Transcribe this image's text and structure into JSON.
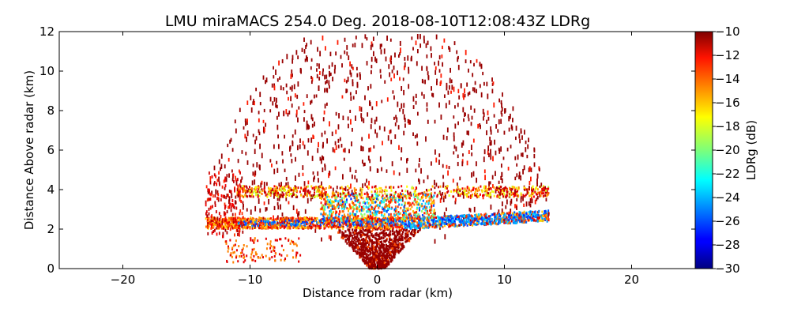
{
  "chart_data": {
    "type": "heatmap",
    "title": "LMU miraMACS 254.0 Deg. 2018-08-10T12:08:43Z  LDRg",
    "xlabel": "Distance from radar (km)",
    "ylabel": "Distance Above radar  (km)",
    "xlim": [
      -25,
      25
    ],
    "ylim": [
      0,
      12
    ],
    "x_ticks": [
      "−20",
      "−10",
      "0",
      "10",
      "20"
    ],
    "y_ticks": [
      "0",
      "2",
      "4",
      "6",
      "8",
      "10",
      "12"
    ],
    "colorbar": {
      "label": "LDRg (dB)",
      "range": [
        -30,
        -10
      ],
      "colormap": "jet",
      "ticks": [
        "−30",
        "−28",
        "−26",
        "−24",
        "−22",
        "−20",
        "−18",
        "−16",
        "−14",
        "−12",
        "−10"
      ]
    },
    "grid": false,
    "features": [
      {
        "kind": "melting-layer",
        "x_range": [
          -13.5,
          13.5
        ],
        "height_km": 2.3,
        "ldr_db": -25,
        "edge_db": -15
      },
      {
        "kind": "upper-layer",
        "x_range": [
          -11,
          13.5
        ],
        "height_km": 3.9,
        "ldr_db": -17
      },
      {
        "kind": "near-surface-clutter",
        "x_range": [
          -3,
          3
        ],
        "height_range_km": [
          0,
          2
        ],
        "ldr_db": -10
      },
      {
        "kind": "sparse-noise-fan",
        "max_range_km": 12.5,
        "ldr_db": -10
      }
    ]
  }
}
